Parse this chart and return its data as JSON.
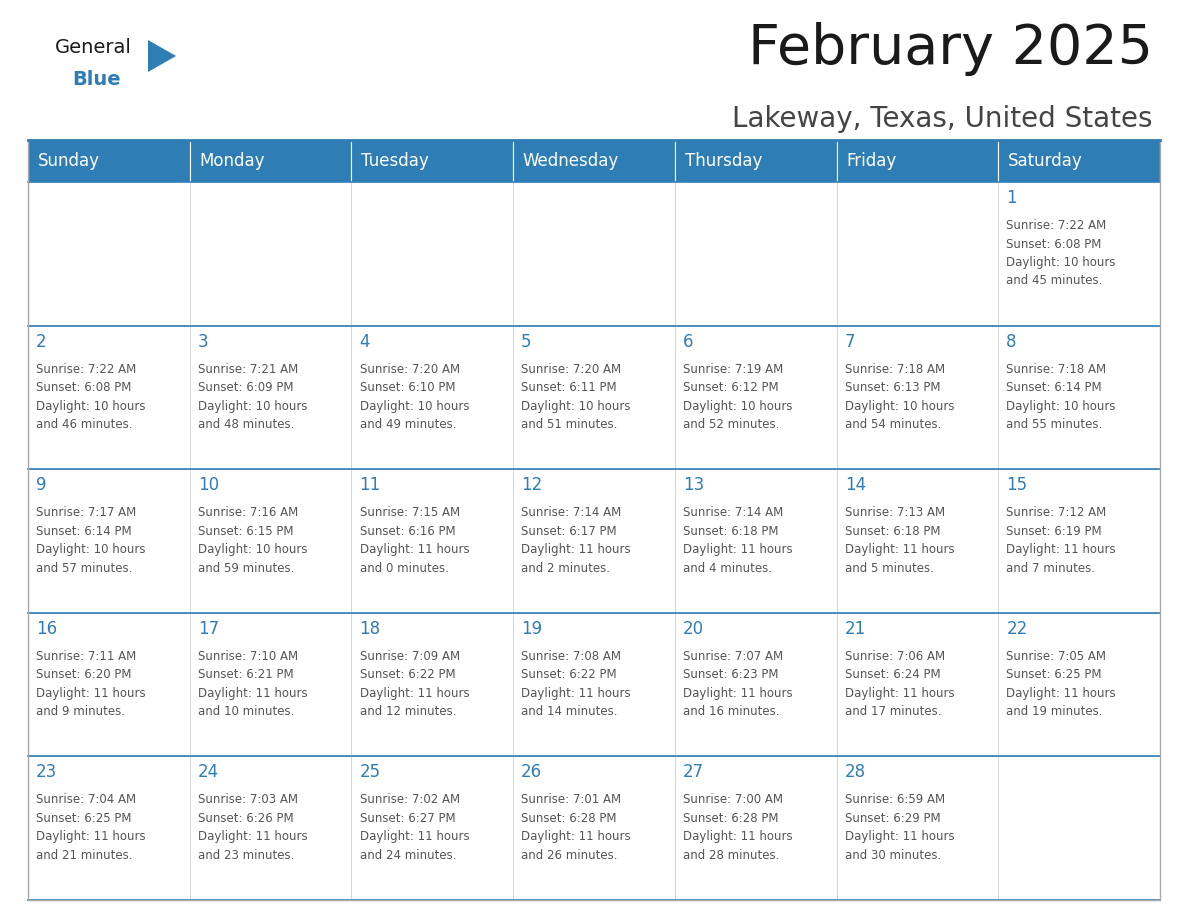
{
  "title": "February 2025",
  "subtitle": "Lakeway, Texas, United States",
  "header_bg": "#2E7DB5",
  "header_text_color": "#FFFFFF",
  "cell_bg": "#FFFFFF",
  "border_color": "#CCCCCC",
  "day_number_color": "#2E7DB5",
  "cell_text_color": "#555555",
  "days_of_week": [
    "Sunday",
    "Monday",
    "Tuesday",
    "Wednesday",
    "Thursday",
    "Friday",
    "Saturday"
  ],
  "calendar_data": [
    [
      null,
      null,
      null,
      null,
      null,
      null,
      {
        "day": 1,
        "sunrise": "7:22 AM",
        "sunset": "6:08 PM",
        "daylight": "10 hours\nand 45 minutes."
      }
    ],
    [
      {
        "day": 2,
        "sunrise": "7:22 AM",
        "sunset": "6:08 PM",
        "daylight": "10 hours\nand 46 minutes."
      },
      {
        "day": 3,
        "sunrise": "7:21 AM",
        "sunset": "6:09 PM",
        "daylight": "10 hours\nand 48 minutes."
      },
      {
        "day": 4,
        "sunrise": "7:20 AM",
        "sunset": "6:10 PM",
        "daylight": "10 hours\nand 49 minutes."
      },
      {
        "day": 5,
        "sunrise": "7:20 AM",
        "sunset": "6:11 PM",
        "daylight": "10 hours\nand 51 minutes."
      },
      {
        "day": 6,
        "sunrise": "7:19 AM",
        "sunset": "6:12 PM",
        "daylight": "10 hours\nand 52 minutes."
      },
      {
        "day": 7,
        "sunrise": "7:18 AM",
        "sunset": "6:13 PM",
        "daylight": "10 hours\nand 54 minutes."
      },
      {
        "day": 8,
        "sunrise": "7:18 AM",
        "sunset": "6:14 PM",
        "daylight": "10 hours\nand 55 minutes."
      }
    ],
    [
      {
        "day": 9,
        "sunrise": "7:17 AM",
        "sunset": "6:14 PM",
        "daylight": "10 hours\nand 57 minutes."
      },
      {
        "day": 10,
        "sunrise": "7:16 AM",
        "sunset": "6:15 PM",
        "daylight": "10 hours\nand 59 minutes."
      },
      {
        "day": 11,
        "sunrise": "7:15 AM",
        "sunset": "6:16 PM",
        "daylight": "11 hours\nand 0 minutes."
      },
      {
        "day": 12,
        "sunrise": "7:14 AM",
        "sunset": "6:17 PM",
        "daylight": "11 hours\nand 2 minutes."
      },
      {
        "day": 13,
        "sunrise": "7:14 AM",
        "sunset": "6:18 PM",
        "daylight": "11 hours\nand 4 minutes."
      },
      {
        "day": 14,
        "sunrise": "7:13 AM",
        "sunset": "6:18 PM",
        "daylight": "11 hours\nand 5 minutes."
      },
      {
        "day": 15,
        "sunrise": "7:12 AM",
        "sunset": "6:19 PM",
        "daylight": "11 hours\nand 7 minutes."
      }
    ],
    [
      {
        "day": 16,
        "sunrise": "7:11 AM",
        "sunset": "6:20 PM",
        "daylight": "11 hours\nand 9 minutes."
      },
      {
        "day": 17,
        "sunrise": "7:10 AM",
        "sunset": "6:21 PM",
        "daylight": "11 hours\nand 10 minutes."
      },
      {
        "day": 18,
        "sunrise": "7:09 AM",
        "sunset": "6:22 PM",
        "daylight": "11 hours\nand 12 minutes."
      },
      {
        "day": 19,
        "sunrise": "7:08 AM",
        "sunset": "6:22 PM",
        "daylight": "11 hours\nand 14 minutes."
      },
      {
        "day": 20,
        "sunrise": "7:07 AM",
        "sunset": "6:23 PM",
        "daylight": "11 hours\nand 16 minutes."
      },
      {
        "day": 21,
        "sunrise": "7:06 AM",
        "sunset": "6:24 PM",
        "daylight": "11 hours\nand 17 minutes."
      },
      {
        "day": 22,
        "sunrise": "7:05 AM",
        "sunset": "6:25 PM",
        "daylight": "11 hours\nand 19 minutes."
      }
    ],
    [
      {
        "day": 23,
        "sunrise": "7:04 AM",
        "sunset": "6:25 PM",
        "daylight": "11 hours\nand 21 minutes."
      },
      {
        "day": 24,
        "sunrise": "7:03 AM",
        "sunset": "6:26 PM",
        "daylight": "11 hours\nand 23 minutes."
      },
      {
        "day": 25,
        "sunrise": "7:02 AM",
        "sunset": "6:27 PM",
        "daylight": "11 hours\nand 24 minutes."
      },
      {
        "day": 26,
        "sunrise": "7:01 AM",
        "sunset": "6:28 PM",
        "daylight": "11 hours\nand 26 minutes."
      },
      {
        "day": 27,
        "sunrise": "7:00 AM",
        "sunset": "6:28 PM",
        "daylight": "11 hours\nand 28 minutes."
      },
      {
        "day": 28,
        "sunrise": "6:59 AM",
        "sunset": "6:29 PM",
        "daylight": "11 hours\nand 30 minutes."
      },
      null
    ]
  ],
  "logo_general_color": "#1a1a1a",
  "logo_blue_color": "#2E7DB5",
  "logo_triangle_color": "#2E7DB5",
  "title_color": "#1a1a1a",
  "subtitle_color": "#444444",
  "title_fontsize": 40,
  "subtitle_fontsize": 20,
  "header_fontsize": 12,
  "day_num_fontsize": 12,
  "cell_fontsize": 8.5
}
